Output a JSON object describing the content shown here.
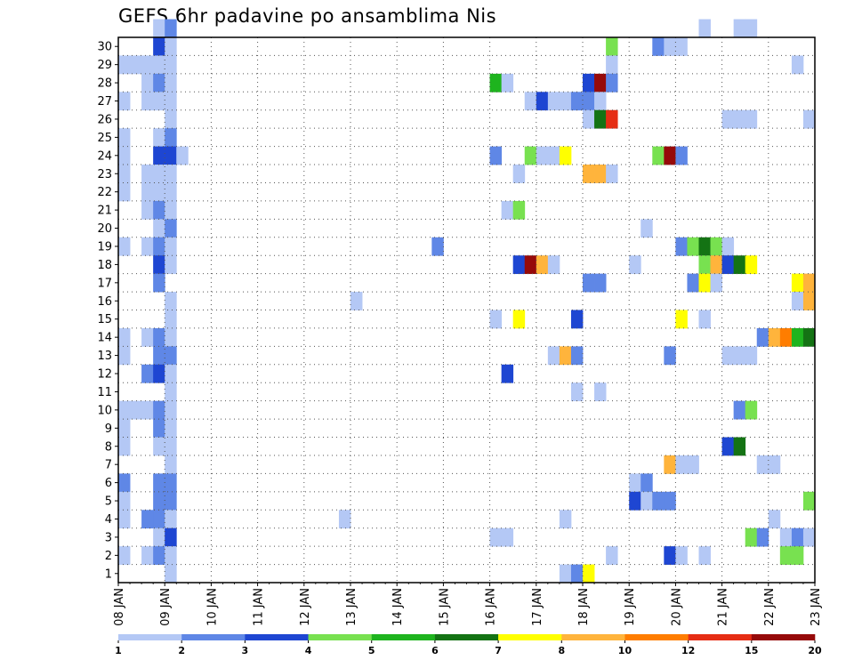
{
  "chart_data": {
    "type": "heatmap",
    "title": "GEFS 6hr padavine po ansamblima Nis",
    "xlabel": "",
    "ylabel": "",
    "x_ticks": [
      "08 JAN",
      "09 JAN",
      "10 JAN",
      "11 JAN",
      "12 JAN",
      "13 JAN",
      "14 JAN",
      "15 JAN",
      "16 JAN",
      "17 JAN",
      "18 JAN",
      "19 JAN",
      "20 JAN",
      "21 JAN",
      "22 JAN",
      "23 JAN"
    ],
    "y_ticks": [
      1,
      2,
      3,
      4,
      5,
      6,
      7,
      8,
      9,
      10,
      11,
      12,
      13,
      14,
      15,
      16,
      17,
      18,
      19,
      20,
      21,
      22,
      23,
      24,
      25,
      26,
      27,
      28,
      29,
      30
    ],
    "xlim": [
      0,
      60
    ],
    "ylim": [
      0,
      30
    ],
    "time_step": "6hr",
    "grid": "dotted",
    "colorbar": {
      "labels": [
        "1",
        "2",
        "3",
        "4",
        "5",
        "6",
        "7",
        "8",
        "10",
        "12",
        "15",
        "20"
      ],
      "colors": [
        "#b4c8f5",
        "#5f87e6",
        "#1e46d2",
        "#78e150",
        "#1eb41e",
        "#147314",
        "#ffff00",
        "#ffb43c",
        "#ff7d00",
        "#e62d14",
        "#960a0a"
      ]
    },
    "cells": [
      [
        3,
        30,
        0
      ],
      [
        4,
        30,
        1
      ],
      [
        50,
        30,
        0
      ],
      [
        53,
        30,
        0
      ],
      [
        54,
        30,
        0
      ],
      [
        3,
        29,
        2
      ],
      [
        4,
        29,
        0
      ],
      [
        42,
        29,
        3
      ],
      [
        46,
        29,
        1
      ],
      [
        47,
        29,
        0
      ],
      [
        48,
        29,
        0
      ],
      [
        0,
        28,
        0
      ],
      [
        1,
        28,
        0
      ],
      [
        2,
        28,
        0
      ],
      [
        3,
        28,
        0
      ],
      [
        4,
        28,
        0
      ],
      [
        42,
        28,
        0
      ],
      [
        58,
        28,
        0
      ],
      [
        2,
        27,
        0
      ],
      [
        3,
        27,
        1
      ],
      [
        4,
        27,
        0
      ],
      [
        32,
        27,
        4
      ],
      [
        33,
        27,
        0
      ],
      [
        40,
        27,
        2
      ],
      [
        41,
        27,
        10
      ],
      [
        42,
        27,
        1
      ],
      [
        0,
        26,
        0
      ],
      [
        2,
        26,
        0
      ],
      [
        3,
        26,
        0
      ],
      [
        4,
        26,
        0
      ],
      [
        35,
        26,
        0
      ],
      [
        36,
        26,
        2
      ],
      [
        37,
        26,
        0
      ],
      [
        38,
        26,
        0
      ],
      [
        39,
        26,
        1
      ],
      [
        40,
        26,
        1
      ],
      [
        41,
        26,
        0
      ],
      [
        4,
        25,
        0
      ],
      [
        40,
        25,
        0
      ],
      [
        41,
        25,
        5
      ],
      [
        42,
        25,
        9
      ],
      [
        52,
        25,
        0
      ],
      [
        53,
        25,
        0
      ],
      [
        54,
        25,
        0
      ],
      [
        59,
        25,
        0
      ],
      [
        0,
        24,
        0
      ],
      [
        3,
        24,
        0
      ],
      [
        4,
        24,
        1
      ],
      [
        0,
        23,
        0
      ],
      [
        3,
        23,
        2
      ],
      [
        4,
        23,
        2
      ],
      [
        5,
        23,
        0
      ],
      [
        32,
        23,
        1
      ],
      [
        35,
        23,
        3
      ],
      [
        36,
        23,
        0
      ],
      [
        37,
        23,
        0
      ],
      [
        38,
        23,
        6
      ],
      [
        46,
        23,
        3
      ],
      [
        47,
        23,
        10
      ],
      [
        48,
        23,
        1
      ],
      [
        0,
        22,
        0
      ],
      [
        2,
        22,
        0
      ],
      [
        3,
        22,
        0
      ],
      [
        4,
        22,
        0
      ],
      [
        34,
        22,
        0
      ],
      [
        40,
        22,
        7
      ],
      [
        41,
        22,
        7
      ],
      [
        42,
        22,
        0
      ],
      [
        0,
        21,
        0
      ],
      [
        2,
        21,
        0
      ],
      [
        3,
        21,
        0
      ],
      [
        4,
        21,
        0
      ],
      [
        2,
        20,
        0
      ],
      [
        3,
        20,
        1
      ],
      [
        4,
        20,
        0
      ],
      [
        33,
        20,
        0
      ],
      [
        34,
        20,
        3
      ],
      [
        3,
        19,
        0
      ],
      [
        4,
        19,
        1
      ],
      [
        45,
        19,
        0
      ],
      [
        0,
        18,
        0
      ],
      [
        2,
        18,
        0
      ],
      [
        3,
        18,
        1
      ],
      [
        4,
        18,
        0
      ],
      [
        27,
        18,
        1
      ],
      [
        48,
        18,
        1
      ],
      [
        49,
        18,
        3
      ],
      [
        50,
        18,
        5
      ],
      [
        51,
        18,
        3
      ],
      [
        52,
        18,
        0
      ],
      [
        3,
        17,
        2
      ],
      [
        4,
        17,
        0
      ],
      [
        34,
        17,
        2
      ],
      [
        35,
        17,
        10
      ],
      [
        36,
        17,
        7
      ],
      [
        37,
        17,
        0
      ],
      [
        44,
        17,
        0
      ],
      [
        50,
        17,
        3
      ],
      [
        51,
        17,
        7
      ],
      [
        52,
        17,
        2
      ],
      [
        53,
        17,
        5
      ],
      [
        54,
        17,
        6
      ],
      [
        3,
        16,
        1
      ],
      [
        40,
        16,
        1
      ],
      [
        41,
        16,
        1
      ],
      [
        49,
        16,
        1
      ],
      [
        50,
        16,
        6
      ],
      [
        51,
        16,
        0
      ],
      [
        58,
        16,
        6
      ],
      [
        59,
        16,
        7
      ],
      [
        4,
        15,
        0
      ],
      [
        20,
        15,
        0
      ],
      [
        58,
        15,
        0
      ],
      [
        59,
        15,
        7
      ],
      [
        4,
        14,
        0
      ],
      [
        32,
        14,
        0
      ],
      [
        34,
        14,
        6
      ],
      [
        39,
        14,
        2
      ],
      [
        48,
        14,
        6
      ],
      [
        50,
        14,
        0
      ],
      [
        0,
        13,
        0
      ],
      [
        2,
        13,
        0
      ],
      [
        3,
        13,
        1
      ],
      [
        4,
        13,
        0
      ],
      [
        55,
        13,
        1
      ],
      [
        56,
        13,
        7
      ],
      [
        57,
        13,
        8
      ],
      [
        58,
        13,
        4
      ],
      [
        59,
        13,
        5
      ],
      [
        0,
        12,
        0
      ],
      [
        3,
        12,
        1
      ],
      [
        4,
        12,
        1
      ],
      [
        37,
        12,
        0
      ],
      [
        38,
        12,
        7
      ],
      [
        39,
        12,
        1
      ],
      [
        47,
        12,
        1
      ],
      [
        52,
        12,
        0
      ],
      [
        53,
        12,
        0
      ],
      [
        54,
        12,
        0
      ],
      [
        2,
        11,
        1
      ],
      [
        3,
        11,
        2
      ],
      [
        4,
        11,
        0
      ],
      [
        33,
        11,
        2
      ],
      [
        4,
        10,
        0
      ],
      [
        39,
        10,
        0
      ],
      [
        41,
        10,
        0
      ],
      [
        0,
        9,
        0
      ],
      [
        1,
        9,
        0
      ],
      [
        2,
        9,
        0
      ],
      [
        3,
        9,
        1
      ],
      [
        4,
        9,
        0
      ],
      [
        53,
        9,
        1
      ],
      [
        54,
        9,
        3
      ],
      [
        0,
        8,
        0
      ],
      [
        3,
        8,
        1
      ],
      [
        4,
        8,
        0
      ],
      [
        0,
        7,
        0
      ],
      [
        3,
        7,
        0
      ],
      [
        4,
        7,
        0
      ],
      [
        52,
        7,
        2
      ],
      [
        53,
        7,
        5
      ],
      [
        4,
        6,
        0
      ],
      [
        47,
        6,
        7
      ],
      [
        48,
        6,
        0
      ],
      [
        49,
        6,
        0
      ],
      [
        55,
        6,
        0
      ],
      [
        56,
        6,
        0
      ],
      [
        0,
        5,
        1
      ],
      [
        3,
        5,
        1
      ],
      [
        4,
        5,
        1
      ],
      [
        44,
        5,
        0
      ],
      [
        45,
        5,
        1
      ],
      [
        0,
        4,
        0
      ],
      [
        3,
        4,
        1
      ],
      [
        4,
        4,
        1
      ],
      [
        44,
        4,
        2
      ],
      [
        45,
        4,
        0
      ],
      [
        46,
        4,
        1
      ],
      [
        47,
        4,
        1
      ],
      [
        59,
        4,
        3
      ],
      [
        0,
        3,
        0
      ],
      [
        2,
        3,
        1
      ],
      [
        3,
        3,
        1
      ],
      [
        4,
        3,
        0
      ],
      [
        19,
        3,
        0
      ],
      [
        38,
        3,
        0
      ],
      [
        56,
        3,
        0
      ],
      [
        3,
        2,
        0
      ],
      [
        4,
        2,
        2
      ],
      [
        32,
        2,
        0
      ],
      [
        33,
        2,
        0
      ],
      [
        54,
        2,
        3
      ],
      [
        55,
        2,
        1
      ],
      [
        57,
        2,
        0
      ],
      [
        58,
        2,
        1
      ],
      [
        59,
        2,
        0
      ],
      [
        0,
        1,
        0
      ],
      [
        2,
        1,
        0
      ],
      [
        3,
        1,
        1
      ],
      [
        4,
        1,
        0
      ],
      [
        42,
        1,
        0
      ],
      [
        47,
        1,
        2
      ],
      [
        48,
        1,
        0
      ],
      [
        50,
        1,
        0
      ],
      [
        57,
        1,
        3
      ],
      [
        58,
        1,
        3
      ],
      [
        4,
        0,
        0
      ],
      [
        38,
        0,
        0
      ],
      [
        39,
        0,
        1
      ],
      [
        40,
        0,
        6
      ]
    ]
  }
}
